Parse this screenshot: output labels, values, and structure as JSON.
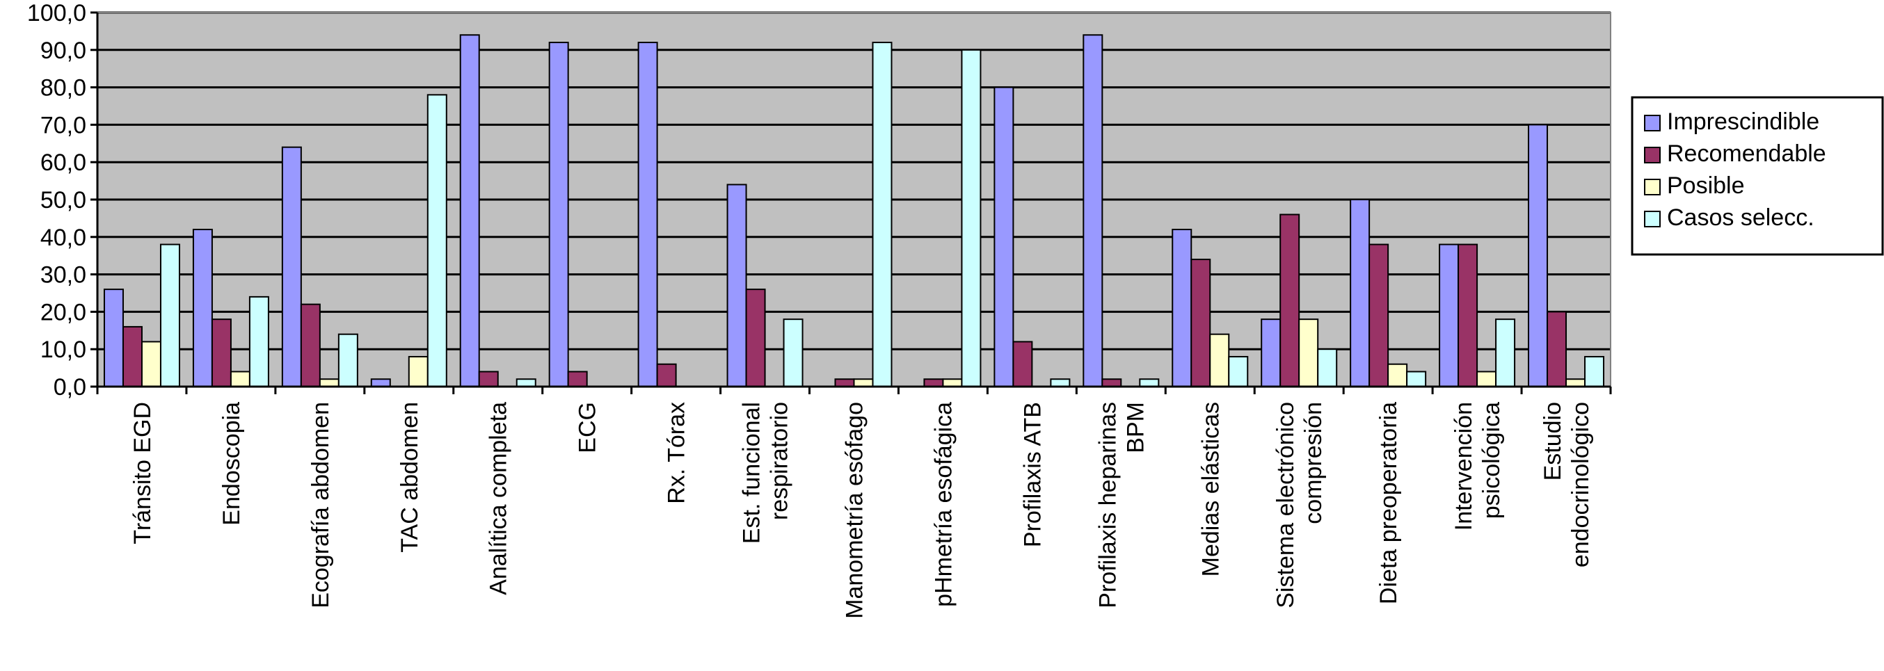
{
  "chart_data": {
    "type": "bar",
    "title": "",
    "xlabel": "",
    "ylabel": "",
    "ylim": [
      0,
      100
    ],
    "y_ticks": [
      "0,0",
      "10,0",
      "20,0",
      "30,0",
      "40,0",
      "50,0",
      "60,0",
      "70,0",
      "80,0",
      "90,0",
      "100,0"
    ],
    "grid": true,
    "legend_position": "right",
    "categories": [
      [
        "Tránsito EGD"
      ],
      [
        "Endoscopia"
      ],
      [
        "Ecografía abdomen"
      ],
      [
        "TAC abdomen"
      ],
      [
        "Analítica completa"
      ],
      [
        "ECG"
      ],
      [
        "Rx. Tórax"
      ],
      [
        "Est. funcional",
        "respiratorio"
      ],
      [
        "Manometría esófago"
      ],
      [
        "pHmetría esofágica"
      ],
      [
        "Profilaxis ATB"
      ],
      [
        "Profilaxis heparinas",
        "BPM"
      ],
      [
        "Medias elásticas"
      ],
      [
        "Sistema electrónico",
        "compresión"
      ],
      [
        "Dieta preoperatoria"
      ],
      [
        "Intervención",
        "psicológica"
      ],
      [
        "Estudio",
        "endocrinológico"
      ]
    ],
    "series": [
      {
        "name": "Imprescindible",
        "color": "#9999FF",
        "values": [
          26,
          42,
          64,
          2,
          94,
          92,
          92,
          54,
          0,
          0,
          80,
          94,
          42,
          18,
          50,
          38,
          70
        ]
      },
      {
        "name": "Recomendable",
        "color": "#993366",
        "values": [
          16,
          18,
          22,
          0,
          4,
          4,
          6,
          26,
          2,
          2,
          12,
          2,
          34,
          46,
          38,
          38,
          20
        ]
      },
      {
        "name": "Posible",
        "color": "#FFFFCC",
        "values": [
          12,
          4,
          2,
          8,
          0,
          0,
          0,
          0,
          2,
          2,
          0,
          0,
          14,
          18,
          6,
          4,
          2
        ]
      },
      {
        "name": "Casos selecc.",
        "color": "#CCFFFF",
        "values": [
          38,
          24,
          14,
          78,
          2,
          0,
          0,
          18,
          92,
          90,
          2,
          2,
          8,
          10,
          4,
          18,
          8
        ]
      }
    ],
    "plot_background": "#C0C0C0"
  }
}
